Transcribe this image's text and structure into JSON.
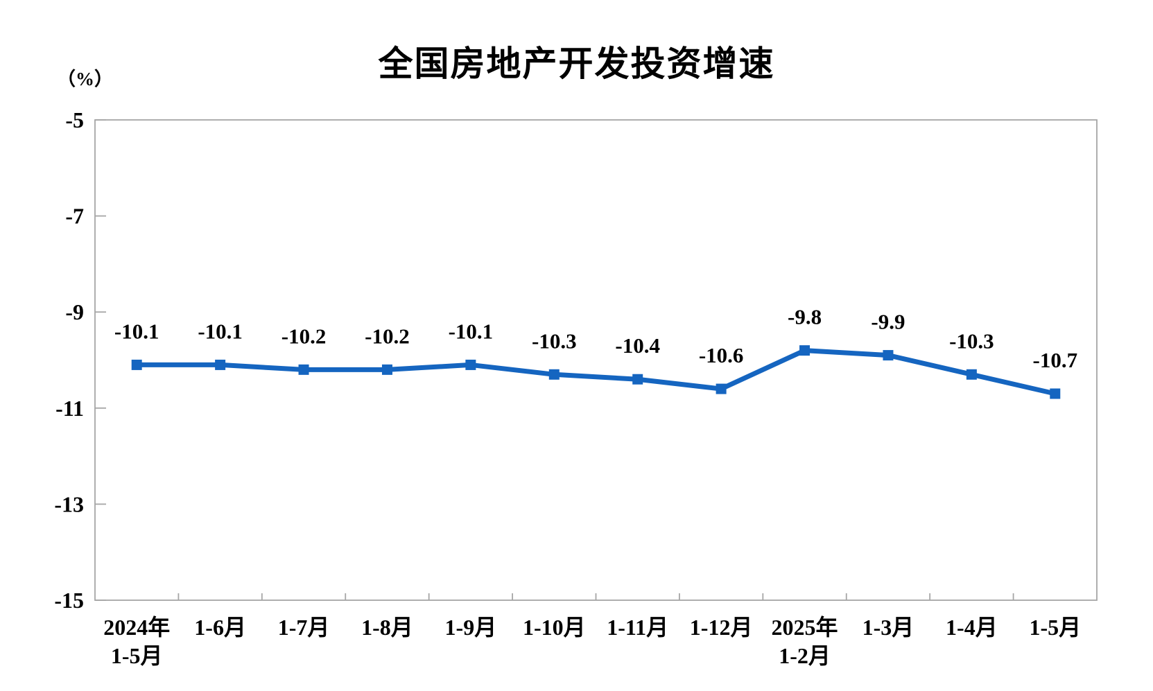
{
  "chart_data": {
    "type": "line",
    "title": "全国房地产开发投资增速",
    "unit_label": "（%）",
    "categories": [
      "2024年\n1-5月",
      "1-6月",
      "1-7月",
      "1-8月",
      "1-9月",
      "1-10月",
      "1-11月",
      "1-12月",
      "2025年\n1-2月",
      "1-3月",
      "1-4月",
      "1-5月"
    ],
    "values": [
      -10.1,
      -10.1,
      -10.2,
      -10.2,
      -10.1,
      -10.3,
      -10.4,
      -10.6,
      -9.8,
      -9.9,
      -10.3,
      -10.7
    ],
    "data_labels": [
      "-10.1",
      "-10.1",
      "-10.2",
      "-10.2",
      "-10.1",
      "-10.3",
      "-10.4",
      "-10.6",
      "-9.8",
      "-9.9",
      "-10.3",
      "-10.7"
    ],
    "ylim": [
      -15,
      -5
    ],
    "yticks": [
      -5,
      -7,
      -9,
      -11,
      -13,
      -15
    ],
    "ytick_labels": [
      "-5",
      "-7",
      "-9",
      "-11",
      "-13",
      "-15"
    ],
    "xlabel": "",
    "ylabel": "（%）",
    "grid": false,
    "legend": "none",
    "marker": "square",
    "line_color": "#1565C0",
    "axis_color": "#A6A6A6",
    "text_color": "#000000",
    "background_color": "#FFFFFF"
  }
}
